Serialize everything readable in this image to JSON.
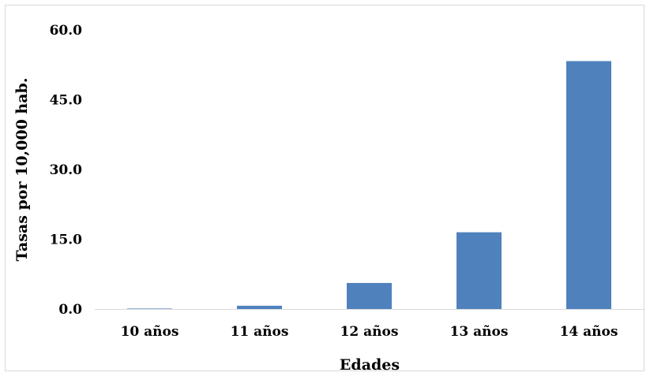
{
  "chart_data": {
    "type": "bar",
    "title": "",
    "xlabel": "Edades",
    "ylabel": "Tasas por 10,000 hab.",
    "categories": [
      "10 años",
      "11 años",
      "12 años",
      "13 años",
      "14 años"
    ],
    "values": [
      0.1,
      0.7,
      5.6,
      16.5,
      53.3
    ],
    "ylim": [
      0,
      60
    ],
    "yticks": [
      "0.0",
      "15.0",
      "30.0",
      "45.0",
      "60.0"
    ],
    "ytick_values": [
      0,
      15,
      30,
      45,
      60
    ],
    "grid": false,
    "legend": "none",
    "bar_color": "#4f81bd",
    "axis_color": "#d9d9d9"
  }
}
